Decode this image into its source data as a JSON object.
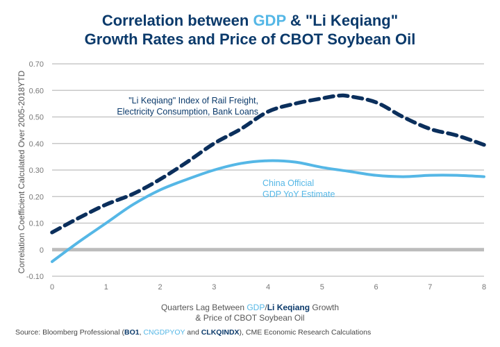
{
  "title": {
    "part1": "Correlation between ",
    "highlight": "GDP",
    "part2": " & \"Li Keqiang\"",
    "line2": "Growth Rates and Price of CBOT Soybean Oil"
  },
  "colors": {
    "li_keqiang": "#0b2f5c",
    "gdp": "#55b7e6",
    "grid": "#c8c8c8",
    "zero_line": "#bcbcbc",
    "title": "#0b3a6b"
  },
  "annotations": {
    "li_keqiang_line1": "\"Li Keqiang\" Index of Rail Freight,",
    "li_keqiang_line2": "Electricity Consumption, Bank Loans",
    "gdp_line1": "China Official",
    "gdp_line2": "GDP YoY Estimate"
  },
  "xlabel": {
    "prefix": "Quarters Lag Between ",
    "gdp": "GDP",
    "slash": "/",
    "lk": "Li Keqiang",
    "suffix": " Growth",
    "line2": "& Price of CBOT Soybean Oil"
  },
  "source": {
    "prefix": "Source: Bloomberg Professional (",
    "bo1": "BO1",
    "comma": ", ",
    "cngdp": "CNGDPYOY",
    "and": " and ",
    "clkq": "CLKQINDX",
    "suffix": "), CME Economic Research Calculations"
  },
  "chart_data": {
    "type": "line",
    "title": "Correlation between GDP & \"Li Keqiang\" Growth Rates and Price of CBOT Soybean Oil",
    "xlabel": "Quarters Lag Between GDP/Li Keqiang Growth & Price of CBOT Soybean Oil",
    "ylabel": "Correlation Coefficient Calculated Over 2005-2018YTD",
    "xlim": [
      0,
      8
    ],
    "ylim": [
      -0.1,
      0.7
    ],
    "x_ticks": [
      "0",
      "1",
      "2",
      "3",
      "4",
      "5",
      "6",
      "7",
      "8"
    ],
    "y_ticks": [
      "0.70",
      "0.60",
      "0.50",
      "0.40",
      "0.30",
      "0.20",
      "0.10",
      "0",
      "-0.10"
    ],
    "y_tick_values": [
      0.7,
      0.6,
      0.5,
      0.4,
      0.3,
      0.2,
      0.1,
      0,
      -0.1
    ],
    "grid": true,
    "legend": "inline annotations",
    "series": [
      {
        "name": "\"Li Keqiang\" Index of Rail Freight, Electricity Consumption, Bank Loans",
        "style": "dashed",
        "x": [
          0,
          0.5,
          1,
          1.5,
          2,
          2.5,
          3,
          3.5,
          4,
          4.5,
          5,
          5.3,
          5.5,
          6,
          6.5,
          7,
          7.5,
          8
        ],
        "values": [
          0.065,
          0.12,
          0.17,
          0.21,
          0.265,
          0.33,
          0.4,
          0.455,
          0.52,
          0.55,
          0.57,
          0.58,
          0.578,
          0.555,
          0.5,
          0.455,
          0.43,
          0.395
        ]
      },
      {
        "name": "China Official GDP YoY Estimate",
        "style": "solid",
        "x": [
          0,
          0.5,
          1,
          1.5,
          2,
          2.5,
          3,
          3.5,
          4,
          4.5,
          5,
          5.5,
          6,
          6.5,
          7,
          7.5,
          8
        ],
        "values": [
          -0.045,
          0.03,
          0.1,
          0.17,
          0.225,
          0.265,
          0.3,
          0.325,
          0.335,
          0.33,
          0.31,
          0.295,
          0.28,
          0.275,
          0.28,
          0.28,
          0.275
        ]
      }
    ]
  }
}
